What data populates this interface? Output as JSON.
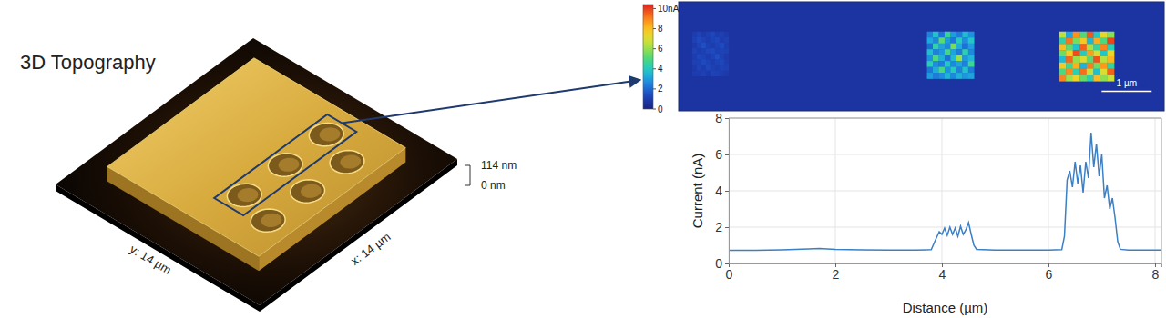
{
  "chart_data": [
    {
      "type": "surface",
      "title": "3D Topography",
      "x_label": "x: 14 µm",
      "y_label": "y: 14 µm",
      "xlim": [
        0,
        14
      ],
      "ylim": [
        0,
        14
      ],
      "zlim": [
        0,
        114
      ],
      "zticks": [
        {
          "value": 0,
          "label": "0 nm"
        },
        {
          "value": 114,
          "label": "114 nm"
        }
      ],
      "plateau": [
        1.8,
        12.2
      ],
      "pits": {
        "x": [
          4.6,
          7.5,
          10.4,
          4.0,
          6.8,
          9.6
        ],
        "y": [
          5.5,
          5.5,
          5.5,
          3.3,
          3.3,
          3.3
        ]
      }
    },
    {
      "type": "heatmap",
      "xlim": [
        0,
        9.7
      ],
      "ylim": [
        0,
        2.2
      ],
      "tick_labels": false,
      "background": 0.7,
      "blocks": [
        {
          "x": [
            0.27,
            1.0
          ],
          "y": [
            0.6,
            1.5
          ],
          "cells": [
            [
              1.0,
              1.2,
              0.9,
              1.1,
              1.3,
              1.0,
              1.1,
              0.9
            ],
            [
              1.1,
              1.4,
              1.2,
              1.0,
              1.2,
              1.3,
              1.0,
              1.1
            ],
            [
              0.9,
              1.2,
              1.5,
              1.1,
              1.0,
              1.2,
              1.4,
              1.0
            ],
            [
              1.2,
              1.0,
              1.1,
              1.3,
              1.4,
              1.1,
              1.2,
              1.1
            ],
            [
              1.0,
              1.3,
              1.2,
              1.0,
              1.2,
              1.5,
              1.1,
              0.9
            ],
            [
              1.1,
              1.1,
              1.4,
              1.2,
              1.0,
              1.2,
              1.3,
              1.0
            ],
            [
              0.9,
              1.2,
              1.0,
              1.3,
              1.1,
              1.0,
              1.2,
              1.1
            ],
            [
              1.0,
              1.0,
              1.1,
              0.9,
              1.2,
              1.1,
              1.0,
              0.9
            ]
          ]
        },
        {
          "x": [
            4.96,
            5.9
          ],
          "y": [
            0.6,
            1.55
          ],
          "cells": [
            [
              2.5,
              3.8,
              2.2,
              4.6,
              3.0,
              2.4,
              3.6,
              2.8
            ],
            [
              3.2,
              2.6,
              5.2,
              3.0,
              2.3,
              4.1,
              2.7,
              3.9
            ],
            [
              2.1,
              4.4,
              3.1,
              2.6,
              5.6,
              3.3,
              2.2,
              3.0
            ],
            [
              3.7,
              2.5,
              2.9,
              4.8,
              3.1,
              2.4,
              4.3,
              2.6
            ],
            [
              2.8,
              5.0,
              3.4,
              2.2,
              3.6,
              6.0,
              2.9,
              3.5
            ],
            [
              4.2,
              2.7,
              2.4,
              3.9,
              2.6,
              3.1,
              2.5,
              4.7
            ],
            [
              2.3,
              3.3,
              4.9,
              2.8,
              4.0,
              2.5,
              3.8,
              2.4
            ],
            [
              3.0,
              2.4,
              2.7,
              3.5,
              2.6,
              3.4,
              2.9,
              3.1
            ]
          ]
        },
        {
          "x": [
            7.6,
            8.7
          ],
          "y": [
            0.6,
            1.6
          ],
          "cells": [
            [
              6.5,
              3.2,
              8.8,
              5.1,
              9.6,
              4.0,
              7.2,
              5.8
            ],
            [
              4.4,
              9.2,
              5.6,
              7.8,
              3.5,
              8.4,
              5.0,
              9.9
            ],
            [
              8.0,
              5.3,
              3.8,
              9.5,
              6.2,
              4.6,
              9.0,
              4.2
            ],
            [
              5.5,
              7.6,
              9.8,
              4.1,
              8.6,
              6.8,
              3.9,
              7.4
            ],
            [
              3.6,
              9.4,
              6.0,
              7.1,
              5.2,
              9.7,
              6.4,
              8.2
            ],
            [
              7.8,
              4.8,
              8.3,
              3.4,
              9.1,
              5.5,
              8.7,
              4.5
            ],
            [
              5.0,
              8.9,
              4.3,
              9.3,
              6.6,
              3.7,
              7.0,
              9.5
            ],
            [
              9.0,
              6.1,
              7.5,
              5.4,
              4.2,
              8.1,
              5.9,
              6.7
            ]
          ]
        }
      ],
      "colorbar": {
        "range": [
          0,
          10.4
        ],
        "ticks": [
          0,
          2,
          4,
          6,
          8,
          {
            "value": 10,
            "label": "10nA"
          }
        ]
      },
      "scale_bar": {
        "value": 1,
        "label": "1 µm"
      }
    },
    {
      "type": "line",
      "color": "#3b7fc4",
      "x": [
        0,
        0.5,
        1.0,
        1.5,
        1.7,
        2.0,
        2.5,
        3.0,
        3.5,
        3.8,
        3.88,
        3.95,
        4.0,
        4.05,
        4.1,
        4.15,
        4.2,
        4.25,
        4.3,
        4.35,
        4.4,
        4.45,
        4.5,
        4.55,
        4.6,
        4.65,
        5.0,
        5.5,
        6.0,
        6.25,
        6.3,
        6.35,
        6.4,
        6.45,
        6.5,
        6.55,
        6.6,
        6.65,
        6.7,
        6.75,
        6.8,
        6.85,
        6.9,
        6.95,
        7.0,
        7.05,
        7.1,
        7.15,
        7.2,
        7.25,
        7.3,
        7.35,
        7.5,
        8.0,
        8.12
      ],
      "values": [
        0.72,
        0.72,
        0.75,
        0.8,
        0.82,
        0.78,
        0.75,
        0.74,
        0.74,
        0.76,
        1.3,
        1.75,
        1.6,
        1.95,
        1.55,
        2.0,
        1.6,
        1.95,
        1.5,
        2.05,
        1.6,
        1.85,
        2.25,
        1.6,
        1.0,
        0.78,
        0.74,
        0.74,
        0.74,
        0.76,
        1.5,
        4.6,
        5.1,
        4.2,
        5.6,
        4.4,
        5.4,
        3.9,
        5.6,
        4.7,
        7.2,
        5.3,
        6.6,
        4.8,
        6.0,
        3.6,
        4.3,
        3.0,
        3.6,
        2.5,
        1.2,
        0.78,
        0.74,
        0.74,
        0.74
      ],
      "xlim": [
        0,
        8.12
      ],
      "xticks": [
        0,
        2,
        4,
        6,
        8
      ],
      "ylim": [
        0,
        8
      ],
      "yticks": [
        0,
        2,
        4,
        6,
        8
      ],
      "grid": true,
      "x_label": "Distance (µm)",
      "y_label": "Current (nA)"
    }
  ]
}
